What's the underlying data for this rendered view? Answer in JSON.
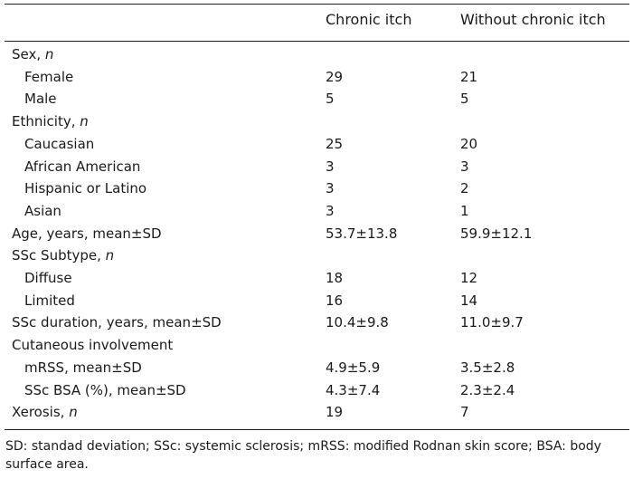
{
  "header": {
    "col1": "Chronic itch",
    "col2": "Without chronic itch"
  },
  "rows": [
    {
      "label": "Sex, ",
      "label_italic": "n",
      "v1": "",
      "v2": "",
      "indent": false
    },
    {
      "label": "Female",
      "label_italic": "",
      "v1": "29",
      "v2": "21",
      "indent": true
    },
    {
      "label": "Male",
      "label_italic": "",
      "v1": "5",
      "v2": "5",
      "indent": true
    },
    {
      "label": "Ethnicity, ",
      "label_italic": "n",
      "v1": "",
      "v2": "",
      "indent": false
    },
    {
      "label": "Caucasian",
      "label_italic": "",
      "v1": "25",
      "v2": "20",
      "indent": true
    },
    {
      "label": "African American",
      "label_italic": "",
      "v1": "3",
      "v2": "3",
      "indent": true
    },
    {
      "label": "Hispanic or Latino",
      "label_italic": "",
      "v1": "3",
      "v2": "2",
      "indent": true
    },
    {
      "label": "Asian",
      "label_italic": "",
      "v1": "3",
      "v2": "1",
      "indent": true
    },
    {
      "label": "Age, years, mean±SD",
      "label_italic": "",
      "v1": "53.7±13.8",
      "v2": "59.9±12.1",
      "indent": false
    },
    {
      "label": "SSc Subtype, ",
      "label_italic": "n",
      "v1": "",
      "v2": "",
      "indent": false
    },
    {
      "label": "Diffuse",
      "label_italic": "",
      "v1": "18",
      "v2": "12",
      "indent": true
    },
    {
      "label": "Limited",
      "label_italic": "",
      "v1": "16",
      "v2": "14",
      "indent": true
    },
    {
      "label": "SSc duration, years, mean±SD",
      "label_italic": "",
      "v1": "10.4±9.8",
      "v2": "11.0±9.7",
      "indent": false
    },
    {
      "label": "Cutaneous involvement",
      "label_italic": "",
      "v1": "",
      "v2": "",
      "indent": false
    },
    {
      "label": "mRSS, mean±SD",
      "label_italic": "",
      "v1": "4.9±5.9",
      "v2": "3.5±2.8",
      "indent": true
    },
    {
      "label": "SSc BSA (%), mean±SD",
      "label_italic": "",
      "v1": "4.3±7.4",
      "v2": "2.3±2.4",
      "indent": true
    },
    {
      "label": "Xerosis, ",
      "label_italic": "n",
      "v1": "19",
      "v2": "7",
      "indent": false
    }
  ],
  "footnote": "SD: standad deviation; SSc: systemic sclerosis; mRSS: modified Rodnan skin score; BSA: body surface area."
}
